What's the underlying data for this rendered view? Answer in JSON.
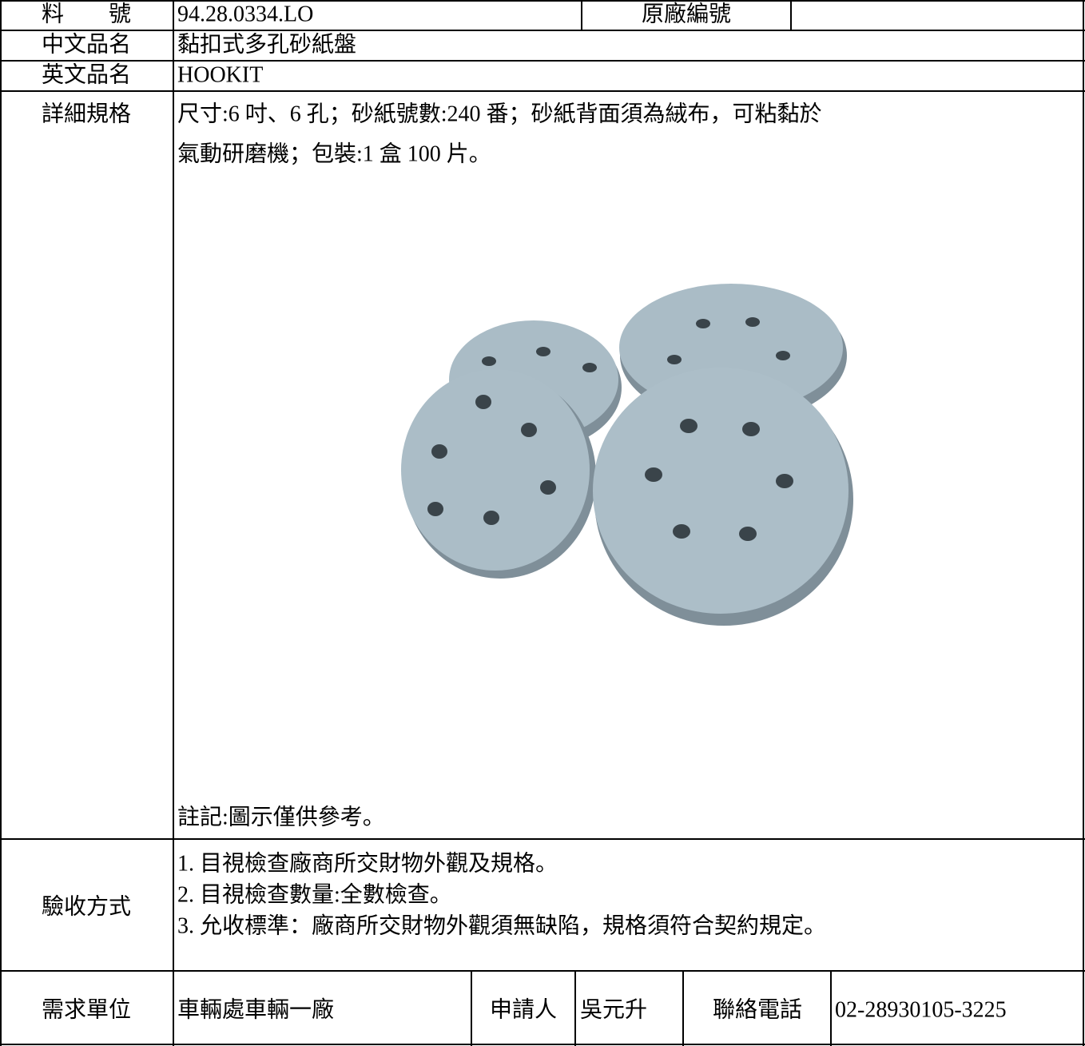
{
  "form": {
    "part_number_label": "料　　號",
    "part_number": "94.28.0334.LO",
    "original_number_label": "原廠編號",
    "chinese_name_label": "中文品名",
    "chinese_name": "黏扣式多孔砂紙盤",
    "english_name_label": "英文品名",
    "english_name": "HOOKIT",
    "spec_label": "詳細規格",
    "spec_lines": [
      "尺寸:6 吋、6 孔；砂紙號數:240 番；砂紙背面須為絨布，可粘黏於",
      "氣動研磨機；包裝:1 盒 100 片。"
    ],
    "note": "註記:圖示僅供參考。",
    "acceptance_label": "驗收方式",
    "acceptance_lines": [
      "1. 目視檢查廠商所交財物外觀及規格。",
      "2. 目視檢查數量:全數檢查。",
      "3. 允收標準：廠商所交財物外觀須無缺陷，規格須符合契約規定。"
    ],
    "unit_label": "需求單位",
    "unit": "車輛處車輛一廠",
    "applicant_label": "申請人",
    "applicant": "吳元升",
    "phone_label": "聯絡電話",
    "phone": "02-28930105-3225"
  }
}
